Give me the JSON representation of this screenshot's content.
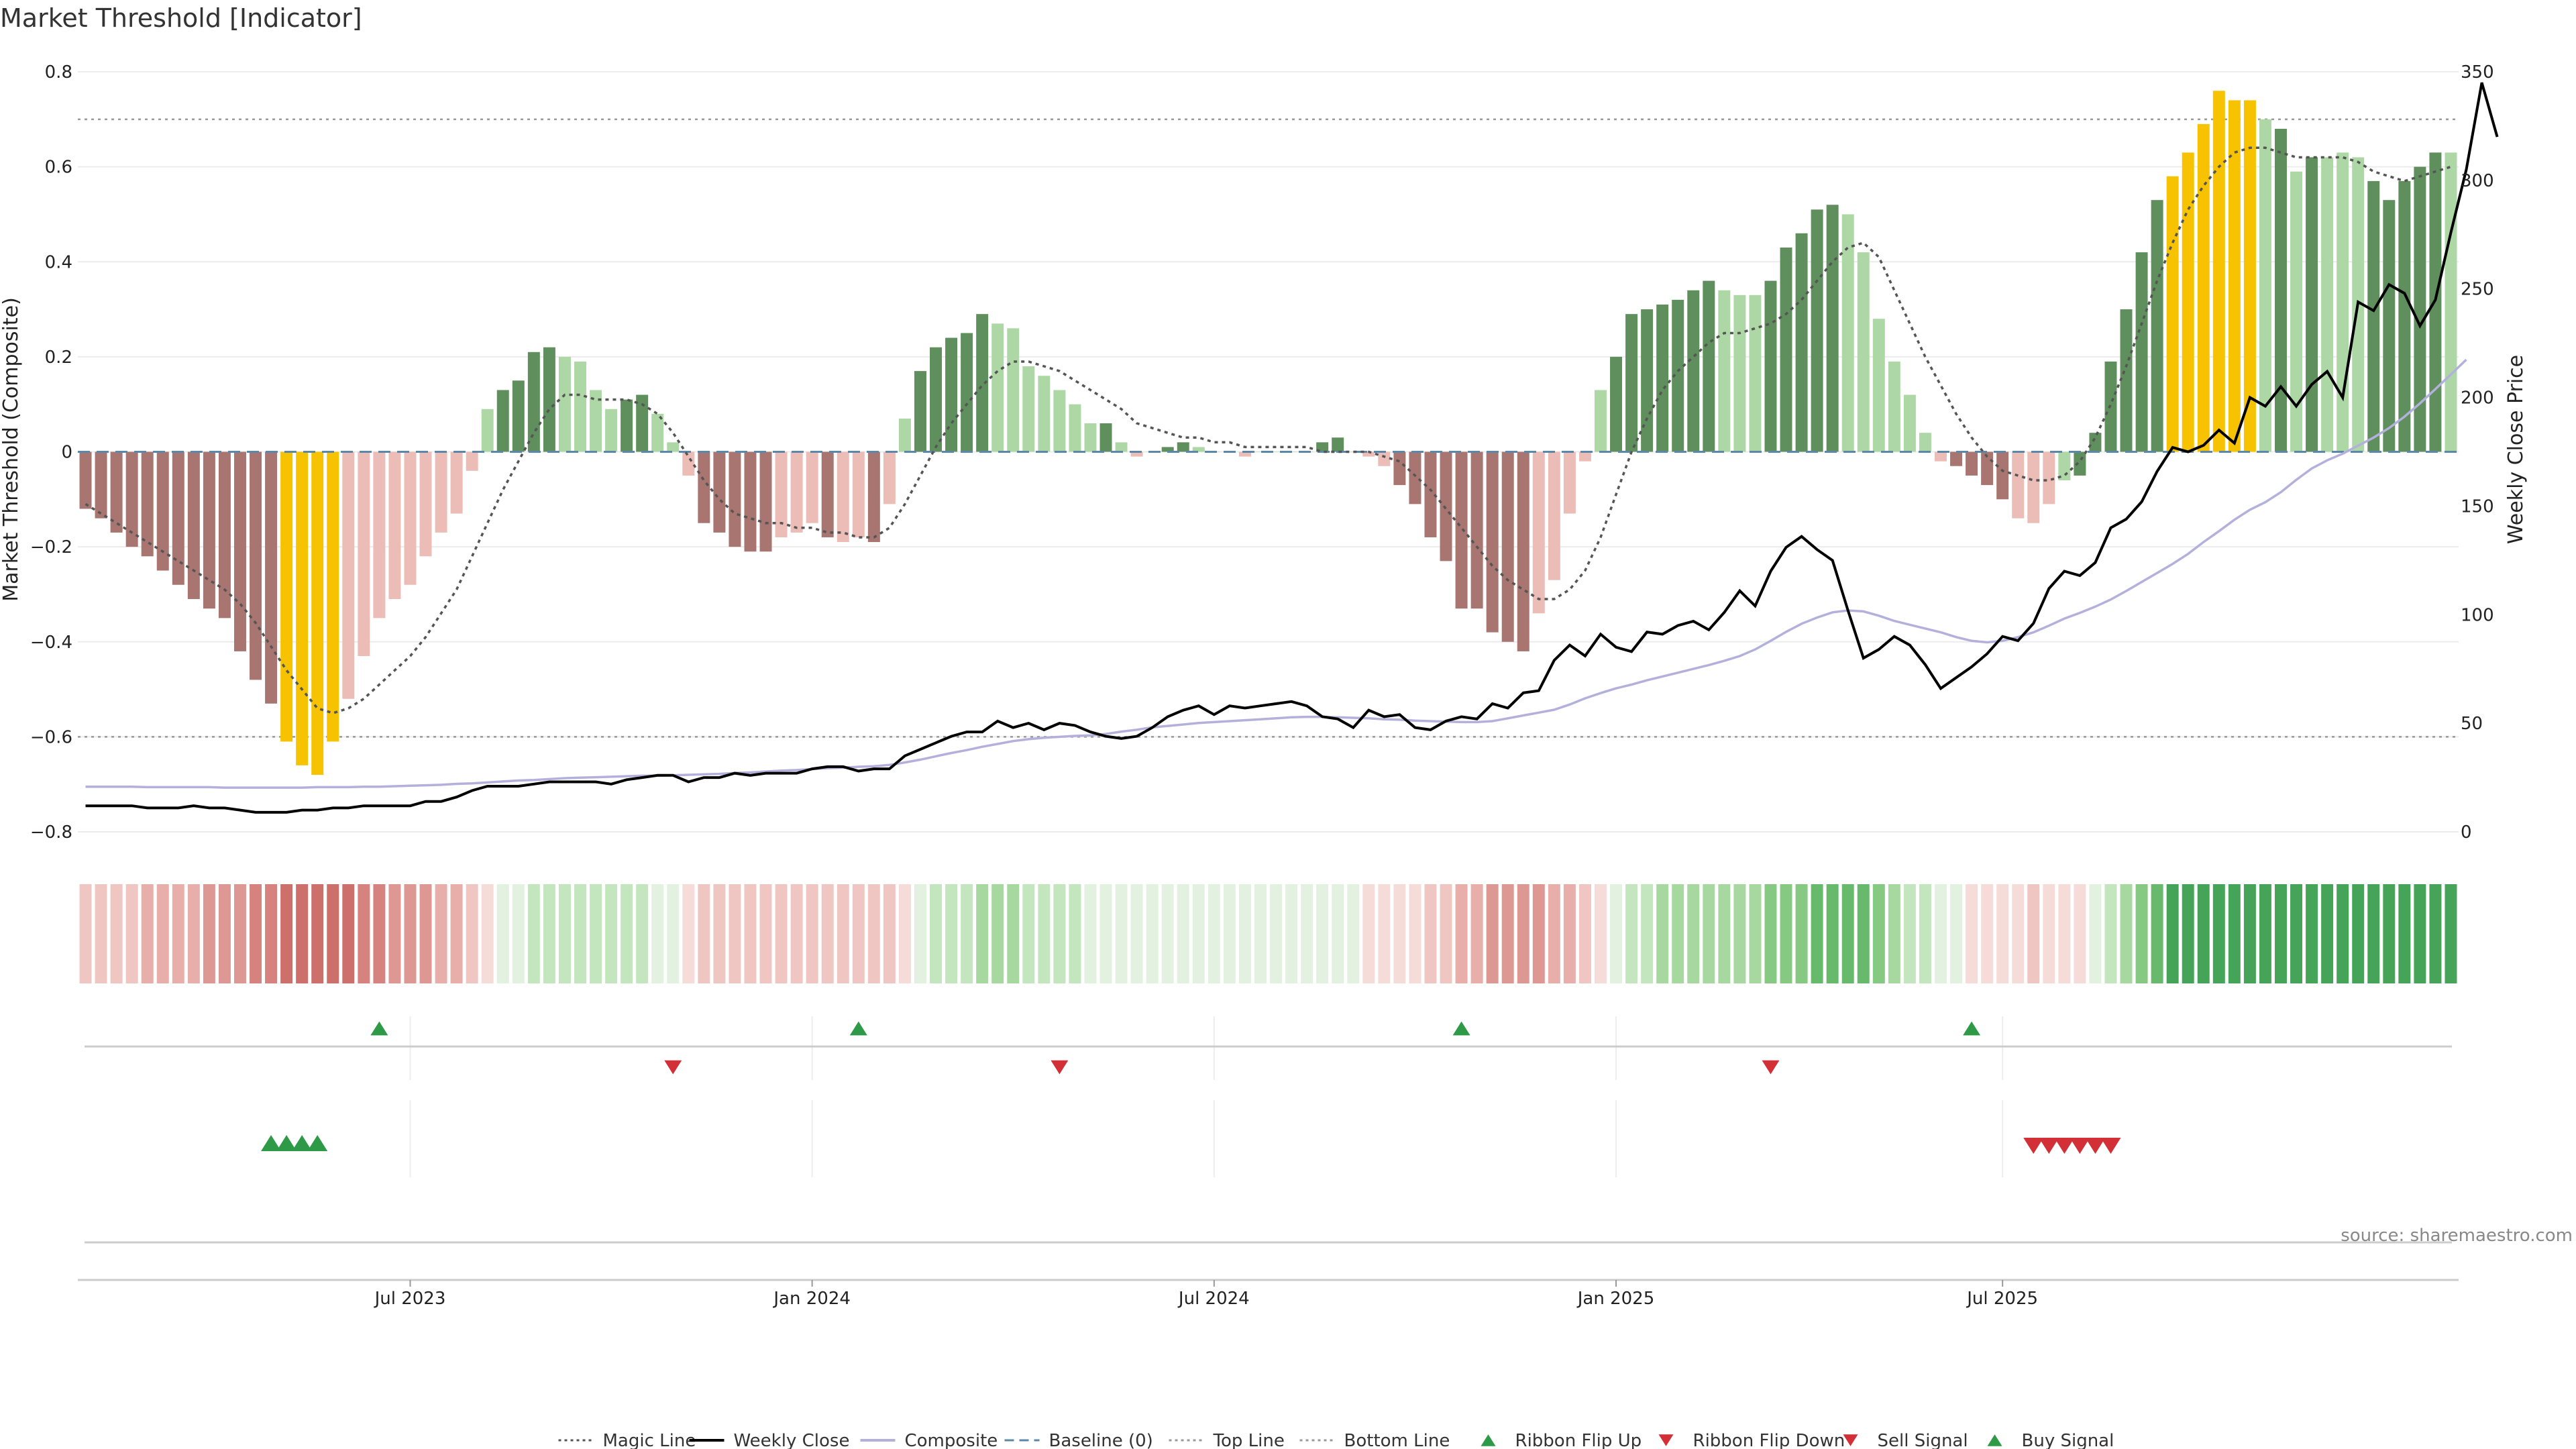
{
  "title": "Market Threshold [Indicator]",
  "source": "source: sharemaestro.com",
  "colors": {
    "strong_pos": "#5f8f5c",
    "weak_pos": "#add8a6",
    "strong_neg": "#a87570",
    "weak_neg": "#ecbcb6",
    "extreme": "#f7c200",
    "magic": "#555555",
    "price": "#000000",
    "composite": "#b4b0dc",
    "baseline": "#5b88a8",
    "threshold": "#999999",
    "buy": "#2e9a47",
    "sell": "#d22f36"
  },
  "chart_data": {
    "type": "bar",
    "title": "Market Threshold [Indicator]",
    "ylabel": "Market Threshold (Composite)",
    "y2label": "Weekly Close Price",
    "ylim": [
      -0.8,
      0.8
    ],
    "y2lim": [
      0,
      350
    ],
    "yticks": [
      "0.8",
      "0.6",
      "0.4",
      "0.2",
      "0",
      "−0.2",
      "−0.4",
      "−0.6",
      "−0.8"
    ],
    "y2ticks": [
      "350",
      "300",
      "250",
      "200",
      "150",
      "100",
      "50",
      "0"
    ],
    "top_line": 0.7,
    "bottom_line": -0.6,
    "x_ticks": [
      {
        "label": "Jul 2023",
        "week": 21
      },
      {
        "label": "Jan 2024",
        "week": 47
      },
      {
        "label": "Jul 2024",
        "week": 73
      },
      {
        "label": "Jan 2025",
        "week": 99
      },
      {
        "label": "Jul 2025",
        "week": 124
      }
    ],
    "composite_bars": [
      -0.12,
      -0.14,
      -0.17,
      -0.2,
      -0.22,
      -0.25,
      -0.28,
      -0.31,
      -0.33,
      -0.35,
      -0.42,
      -0.48,
      -0.53,
      -0.61,
      -0.66,
      -0.68,
      -0.61,
      -0.52,
      -0.43,
      -0.35,
      -0.31,
      -0.28,
      -0.22,
      -0.17,
      -0.13,
      -0.04,
      0.09,
      0.13,
      0.15,
      0.21,
      0.22,
      0.2,
      0.19,
      0.13,
      0.09,
      0.11,
      0.12,
      0.08,
      0.02,
      -0.05,
      -0.15,
      -0.17,
      -0.2,
      -0.21,
      -0.21,
      -0.18,
      -0.17,
      -0.15,
      -0.18,
      -0.19,
      -0.18,
      -0.19,
      -0.11,
      0.07,
      0.17,
      0.22,
      0.24,
      0.25,
      0.29,
      0.27,
      0.26,
      0.18,
      0.16,
      0.13,
      0.1,
      0.06,
      0.06,
      0.02,
      -0.01,
      0.0,
      0.01,
      0.02,
      0.01,
      0.0,
      0.0,
      -0.01,
      0.0,
      0.0,
      0.0,
      0.0,
      0.02,
      0.03,
      0.0,
      -0.01,
      -0.03,
      -0.07,
      -0.11,
      -0.18,
      -0.23,
      -0.33,
      -0.33,
      -0.38,
      -0.4,
      -0.42,
      -0.34,
      -0.27,
      -0.13,
      -0.02,
      0.13,
      0.2,
      0.29,
      0.3,
      0.31,
      0.32,
      0.34,
      0.36,
      0.34,
      0.33,
      0.33,
      0.36,
      0.43,
      0.46,
      0.51,
      0.52,
      0.5,
      0.42,
      0.28,
      0.19,
      0.12,
      0.04,
      -0.02,
      -0.03,
      -0.05,
      -0.07,
      -0.1,
      -0.14,
      -0.15,
      -0.11,
      -0.06,
      -0.05,
      0.04,
      0.19,
      0.3,
      0.42,
      0.53,
      0.58,
      0.63,
      0.69,
      0.76,
      0.74,
      0.74,
      0.7,
      0.68,
      0.59,
      0.62,
      0.62,
      0.63,
      0.62,
      0.57,
      0.53,
      0.57,
      0.6,
      0.63,
      0.63
    ],
    "bar_class": [
      "sn",
      "sn",
      "sn",
      "sn",
      "sn",
      "sn",
      "sn",
      "sn",
      "sn",
      "sn",
      "sn",
      "sn",
      "sn",
      "ex",
      "ex",
      "ex",
      "ex",
      "wn",
      "wn",
      "wn",
      "wn",
      "wn",
      "wn",
      "wn",
      "wn",
      "wn",
      "wp",
      "sp",
      "sp",
      "sp",
      "sp",
      "wp",
      "wp",
      "wp",
      "wp",
      "sp",
      "sp",
      "wp",
      "wp",
      "wn",
      "sn",
      "sn",
      "sn",
      "sn",
      "sn",
      "wn",
      "wn",
      "wn",
      "sn",
      "wn",
      "wn",
      "sn",
      "wn",
      "wp",
      "sp",
      "sp",
      "sp",
      "sp",
      "sp",
      "wp",
      "wp",
      "wp",
      "wp",
      "wp",
      "wp",
      "wp",
      "sp",
      "wp",
      "wn",
      "wp",
      "sp",
      "sp",
      "wp",
      "wp",
      "wp",
      "wn",
      "wp",
      "wp",
      "wp",
      "wp",
      "sp",
      "sp",
      "wp",
      "wn",
      "wn",
      "sn",
      "sn",
      "sn",
      "sn",
      "sn",
      "sn",
      "sn",
      "sn",
      "sn",
      "wn",
      "wn",
      "wn",
      "wn",
      "wp",
      "sp",
      "sp",
      "sp",
      "sp",
      "sp",
      "sp",
      "sp",
      "wp",
      "wp",
      "wp",
      "sp",
      "sp",
      "sp",
      "sp",
      "sp",
      "wp",
      "wp",
      "wp",
      "wp",
      "wp",
      "wp",
      "wn",
      "sn",
      "sn",
      "sn",
      "sn",
      "wn",
      "wn",
      "wn",
      "wp",
      "sp",
      "sp",
      "sp",
      "sp",
      "sp",
      "sp",
      "ex",
      "ex",
      "ex",
      "ex",
      "ex",
      "ex",
      "wp",
      "sp",
      "wp",
      "sp",
      "wp",
      "wp",
      "wp",
      "sp",
      "sp",
      "sp",
      "sp",
      "sp"
    ],
    "magic_line": [
      -0.11,
      -0.13,
      -0.15,
      -0.17,
      -0.19,
      -0.21,
      -0.23,
      -0.25,
      -0.27,
      -0.29,
      -0.32,
      -0.36,
      -0.41,
      -0.46,
      -0.5,
      -0.54,
      -0.55,
      -0.54,
      -0.52,
      -0.49,
      -0.46,
      -0.43,
      -0.39,
      -0.34,
      -0.29,
      -0.22,
      -0.15,
      -0.08,
      -0.02,
      0.04,
      0.09,
      0.12,
      0.12,
      0.11,
      0.11,
      0.11,
      0.1,
      0.08,
      0.04,
      -0.01,
      -0.06,
      -0.1,
      -0.13,
      -0.14,
      -0.15,
      -0.15,
      -0.16,
      -0.16,
      -0.17,
      -0.17,
      -0.18,
      -0.18,
      -0.16,
      -0.11,
      -0.05,
      0.01,
      0.06,
      0.1,
      0.14,
      0.17,
      0.19,
      0.19,
      0.18,
      0.17,
      0.15,
      0.13,
      0.11,
      0.09,
      0.06,
      0.05,
      0.04,
      0.03,
      0.03,
      0.02,
      0.02,
      0.01,
      0.01,
      0.01,
      0.01,
      0.01,
      0.0,
      0.0,
      0.0,
      0.0,
      -0.01,
      -0.02,
      -0.05,
      -0.08,
      -0.12,
      -0.16,
      -0.2,
      -0.24,
      -0.27,
      -0.29,
      -0.31,
      -0.31,
      -0.29,
      -0.25,
      -0.18,
      -0.09,
      0.0,
      0.07,
      0.13,
      0.17,
      0.2,
      0.23,
      0.25,
      0.25,
      0.26,
      0.27,
      0.29,
      0.32,
      0.36,
      0.4,
      0.43,
      0.44,
      0.41,
      0.34,
      0.27,
      0.2,
      0.14,
      0.08,
      0.03,
      -0.01,
      -0.04,
      -0.05,
      -0.06,
      -0.06,
      -0.05,
      -0.02,
      0.03,
      0.1,
      0.18,
      0.27,
      0.36,
      0.44,
      0.51,
      0.56,
      0.6,
      0.63,
      0.64,
      0.64,
      0.63,
      0.62,
      0.62,
      0.62,
      0.62,
      0.61,
      0.59,
      0.58,
      0.57,
      0.58,
      0.59,
      0.6
    ],
    "weekly_close": [
      12,
      12,
      12,
      12,
      11,
      11,
      11,
      12,
      11,
      11,
      10,
      9,
      9,
      9,
      10,
      10,
      11,
      11,
      12,
      12,
      12,
      12,
      14,
      14,
      16,
      19,
      21,
      21,
      21,
      22,
      23,
      23,
      23,
      23,
      22,
      24,
      25,
      26,
      26,
      23,
      25,
      25,
      27,
      26,
      27,
      27,
      27,
      29,
      30,
      30,
      28,
      29,
      29,
      35,
      38,
      41,
      44,
      46,
      46,
      51,
      48,
      50,
      47,
      50,
      49,
      46,
      44,
      43,
      44,
      48,
      53,
      56,
      58,
      54,
      58,
      57,
      58,
      59,
      60,
      58,
      53,
      52,
      48,
      56,
      53,
      54,
      48,
      47,
      51,
      53,
      52,
      59,
      57,
      64,
      65,
      79,
      86,
      81,
      91,
      85,
      83,
      92,
      91,
      95,
      97,
      93,
      101,
      111,
      104,
      120,
      131,
      136,
      130,
      125,
      102,
      80,
      84,
      90,
      86,
      77,
      66,
      71,
      76,
      82,
      90,
      88,
      96,
      112,
      120,
      118,
      124,
      140,
      144,
      152,
      166,
      177,
      175,
      178,
      185,
      179,
      200,
      196,
      205,
      196,
      206,
      212,
      200,
      244,
      240,
      252,
      248,
      233,
      245,
      276,
      305,
      345,
      320
    ],
    "composite_line": [
      -0.705,
      -0.705,
      -0.705,
      -0.705,
      -0.706,
      -0.706,
      -0.706,
      -0.706,
      -0.706,
      -0.707,
      -0.707,
      -0.707,
      -0.707,
      -0.707,
      -0.707,
      -0.706,
      -0.706,
      -0.706,
      -0.705,
      -0.705,
      -0.704,
      -0.703,
      -0.702,
      -0.701,
      -0.699,
      -0.698,
      -0.696,
      -0.694,
      -0.692,
      -0.691,
      -0.689,
      -0.687,
      -0.686,
      -0.685,
      -0.684,
      -0.683,
      -0.682,
      -0.682,
      -0.681,
      -0.68,
      -0.679,
      -0.678,
      -0.676,
      -0.675,
      -0.673,
      -0.671,
      -0.67,
      -0.668,
      -0.666,
      -0.665,
      -0.663,
      -0.662,
      -0.659,
      -0.654,
      -0.648,
      -0.641,
      -0.634,
      -0.628,
      -0.621,
      -0.615,
      -0.609,
      -0.605,
      -0.602,
      -0.6,
      -0.598,
      -0.597,
      -0.594,
      -0.589,
      -0.585,
      -0.58,
      -0.577,
      -0.574,
      -0.571,
      -0.569,
      -0.567,
      -0.565,
      -0.563,
      -0.561,
      -0.559,
      -0.558,
      -0.558,
      -0.559,
      -0.56,
      -0.561,
      -0.563,
      -0.564,
      -0.566,
      -0.567,
      -0.568,
      -0.569,
      -0.569,
      -0.567,
      -0.561,
      -0.555,
      -0.549,
      -0.543,
      -0.532,
      -0.519,
      -0.508,
      -0.498,
      -0.49,
      -0.481,
      -0.473,
      -0.465,
      -0.457,
      -0.449,
      -0.44,
      -0.43,
      -0.416,
      -0.398,
      -0.379,
      -0.362,
      -0.349,
      -0.338,
      -0.334,
      -0.336,
      -0.345,
      -0.356,
      -0.364,
      -0.372,
      -0.38,
      -0.39,
      -0.398,
      -0.401,
      -0.398,
      -0.39,
      -0.38,
      -0.366,
      -0.351,
      -0.339,
      -0.326,
      -0.311,
      -0.293,
      -0.274,
      -0.255,
      -0.236,
      -0.215,
      -0.19,
      -0.167,
      -0.143,
      -0.122,
      -0.106,
      -0.085,
      -0.059,
      -0.035,
      -0.018,
      -0.004,
      0.013,
      0.03,
      0.05,
      0.074,
      0.102,
      0.132,
      0.163,
      0.194
    ],
    "flip_up_weeks": [
      19,
      50,
      89,
      122
    ],
    "flip_down_weeks": [
      38,
      63,
      109
    ],
    "buy_signal_weeks": [
      12,
      13,
      14,
      15
    ],
    "sell_signal_weeks": [
      126,
      127,
      128,
      129,
      130,
      131
    ],
    "legend": [
      {
        "label": "Magic Line",
        "icon": "dotted-line"
      },
      {
        "label": "Weekly Close",
        "icon": "solid-line"
      },
      {
        "label": "Composite",
        "icon": "solid-line"
      },
      {
        "label": "Baseline (0)",
        "icon": "dashed-line"
      },
      {
        "label": "Top Line",
        "icon": "dotted-line"
      },
      {
        "label": "Bottom Line",
        "icon": "dotted-line"
      },
      {
        "label": "Ribbon Flip Up",
        "icon": "triangle-up"
      },
      {
        "label": "Ribbon Flip Down",
        "icon": "triangle-down"
      },
      {
        "label": "Sell Signal",
        "icon": "triangle-down"
      },
      {
        "label": "Buy Signal",
        "icon": "triangle-up"
      }
    ],
    "legend_placement": "bottom-center",
    "grid": true
  }
}
